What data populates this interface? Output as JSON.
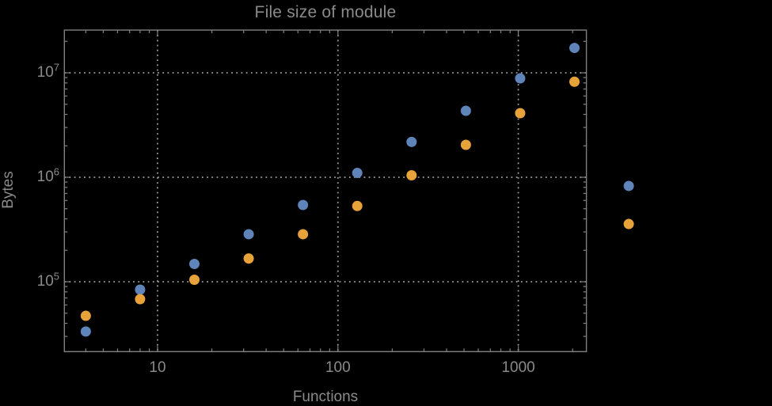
{
  "chart_data": {
    "type": "scatter",
    "title": "File size of module",
    "xlabel": "Functions",
    "ylabel": "Bytes",
    "x_scale": "log",
    "y_scale": "log",
    "x_ticks": [
      10,
      100,
      1000
    ],
    "y_ticks": [
      100000,
      1000000,
      10000000
    ],
    "x_range": [
      3,
      2360
    ],
    "y_range": [
      21500,
      25500000
    ],
    "grid": {
      "style": "dotted",
      "x_lines": [
        10,
        100,
        1000
      ],
      "y_lines": [
        100000,
        1000000,
        10000000
      ]
    },
    "legend": "none",
    "plot_range_clipping": false,
    "series": [
      {
        "name": "blue-series",
        "color": "#5E84BA",
        "x": [
          4,
          8,
          16,
          32,
          64,
          128,
          256,
          512,
          1024,
          2048,
          4096
        ],
        "y": [
          33400,
          84000,
          148000,
          285000,
          543000,
          1100000,
          2180000,
          4330000,
          8850000,
          17300000,
          826000
        ]
      },
      {
        "name": "orange-series",
        "color": "#E8A23A",
        "x": [
          4,
          8,
          16,
          32,
          64,
          128,
          256,
          512,
          1024,
          2048,
          4096
        ],
        "y": [
          47200,
          68100,
          104500,
          167000,
          285000,
          531000,
          1045000,
          2045000,
          4110000,
          8210000,
          357000
        ]
      }
    ],
    "marker": {
      "shape": "circle",
      "radius_px": 6.5
    },
    "colors": {
      "background": "#000000",
      "text": "#8A8A8A",
      "frame": "#808080",
      "grid": "#9C9C9C"
    }
  }
}
